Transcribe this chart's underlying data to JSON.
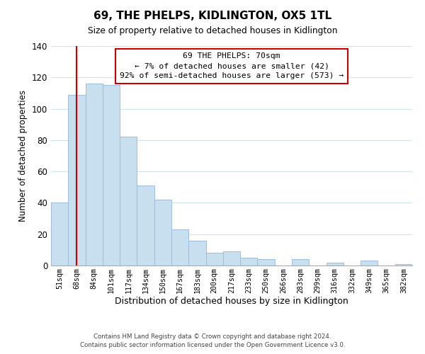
{
  "title": "69, THE PHELPS, KIDLINGTON, OX5 1TL",
  "subtitle": "Size of property relative to detached houses in Kidlington",
  "xlabel": "Distribution of detached houses by size in Kidlington",
  "ylabel": "Number of detached properties",
  "bar_color": "#c8dff0",
  "bar_edge_color": "#a0bcd8",
  "categories": [
    "51sqm",
    "68sqm",
    "84sqm",
    "101sqm",
    "117sqm",
    "134sqm",
    "150sqm",
    "167sqm",
    "183sqm",
    "200sqm",
    "217sqm",
    "233sqm",
    "250sqm",
    "266sqm",
    "283sqm",
    "299sqm",
    "316sqm",
    "332sqm",
    "349sqm",
    "365sqm",
    "382sqm"
  ],
  "values": [
    40,
    109,
    116,
    115,
    82,
    51,
    42,
    23,
    16,
    8,
    9,
    5,
    4,
    0,
    4,
    0,
    2,
    0,
    3,
    0,
    1
  ],
  "ylim": [
    0,
    140
  ],
  "yticks": [
    0,
    20,
    40,
    60,
    80,
    100,
    120,
    140
  ],
  "ref_line_x": 1,
  "ref_line_color": "#cc0000",
  "annotation_text": "69 THE PHELPS: 70sqm\n← 7% of detached houses are smaller (42)\n92% of semi-detached houses are larger (573) →",
  "annotation_box_color": "#ffffff",
  "annotation_box_edge": "#cc0000",
  "footer1": "Contains HM Land Registry data © Crown copyright and database right 2024.",
  "footer2": "Contains public sector information licensed under the Open Government Licence v3.0.",
  "background_color": "#ffffff",
  "grid_color": "#d0e4f0"
}
